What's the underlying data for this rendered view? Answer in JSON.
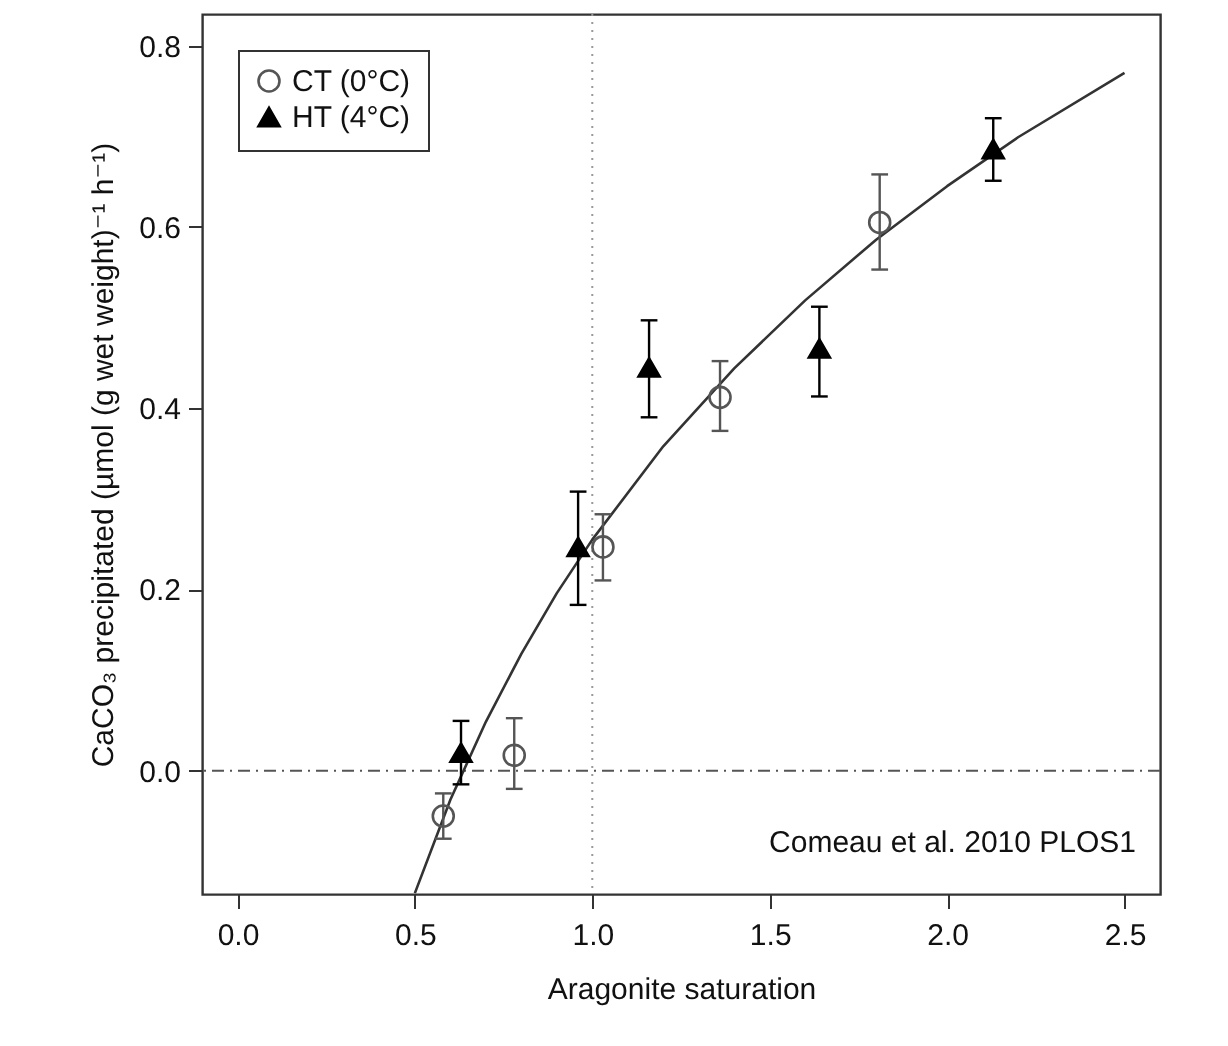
{
  "chart_data": {
    "type": "scatter",
    "xlabel": "Aragonite saturation",
    "ylabel": "CaCO₃ precipitated (µmol (g wet weight)⁻¹ h⁻¹)",
    "xlim": [
      -0.1,
      2.6
    ],
    "ylim": [
      -0.136,
      0.835
    ],
    "xticks": [
      {
        "value": 0,
        "label": "0.0"
      },
      {
        "value": 0.5,
        "label": "0.5"
      },
      {
        "value": 1,
        "label": "1.0"
      },
      {
        "value": 1.5,
        "label": "1.5"
      },
      {
        "value": 2,
        "label": "2.0"
      },
      {
        "value": 2.5,
        "label": "2.5"
      }
    ],
    "yticks": [
      {
        "value": 0,
        "label": "0.0"
      },
      {
        "value": 0.2,
        "label": "0.2"
      },
      {
        "value": 0.4,
        "label": "0.4"
      },
      {
        "value": 0.6,
        "label": "0.6"
      },
      {
        "value": 0.8,
        "label": "0.8"
      }
    ],
    "grid": false,
    "legend": "top left",
    "series": [
      {
        "name": "CT (0°C)",
        "color": "#555555",
        "marker": "circle",
        "x": [
          0.58,
          0.78,
          1.03,
          1.36,
          1.81
        ],
        "values": [
          -0.05,
          0.017,
          0.247,
          0.412,
          0.605
        ],
        "errors": [
          [
            -0.075,
            -0.025
          ],
          [
            -0.02,
            0.058
          ],
          [
            0.21,
            0.283
          ],
          [
            0.375,
            0.452
          ],
          [
            0.553,
            0.658
          ]
        ]
      },
      {
        "name": "HT (4°C)",
        "color": "#000000",
        "marker": "triangle",
        "x": [
          0.63,
          0.96,
          1.16,
          1.64,
          2.13
        ],
        "values": [
          0.02,
          0.247,
          0.445,
          0.466,
          0.686
        ],
        "errors": [
          [
            -0.015,
            0.055
          ],
          [
            0.183,
            0.308
          ],
          [
            0.39,
            0.497
          ],
          [
            0.413,
            0.512
          ],
          [
            0.651,
            0.72
          ]
        ]
      },
      {
        "type": "line",
        "color": "#333333",
        "marker": "none",
        "x": [
          0.5,
          0.6,
          0.7,
          0.8,
          0.9,
          1.0,
          1.2,
          1.4,
          1.6,
          1.8,
          2.0,
          2.2,
          2.5
        ],
        "values": [
          -0.135,
          -0.032,
          0.054,
          0.129,
          0.196,
          0.255,
          0.358,
          0.444,
          0.519,
          0.586,
          0.645,
          0.699,
          0.77
        ]
      }
    ],
    "ref_lines": [
      {
        "axis": "x",
        "value": 1.0,
        "line_style": "dotted",
        "color": "#999999"
      },
      {
        "axis": "y",
        "value": 0,
        "line_style": "dashdot",
        "color": "#555555"
      }
    ],
    "annotations": [
      "Comeau et al. 2010 PLOS1"
    ]
  }
}
